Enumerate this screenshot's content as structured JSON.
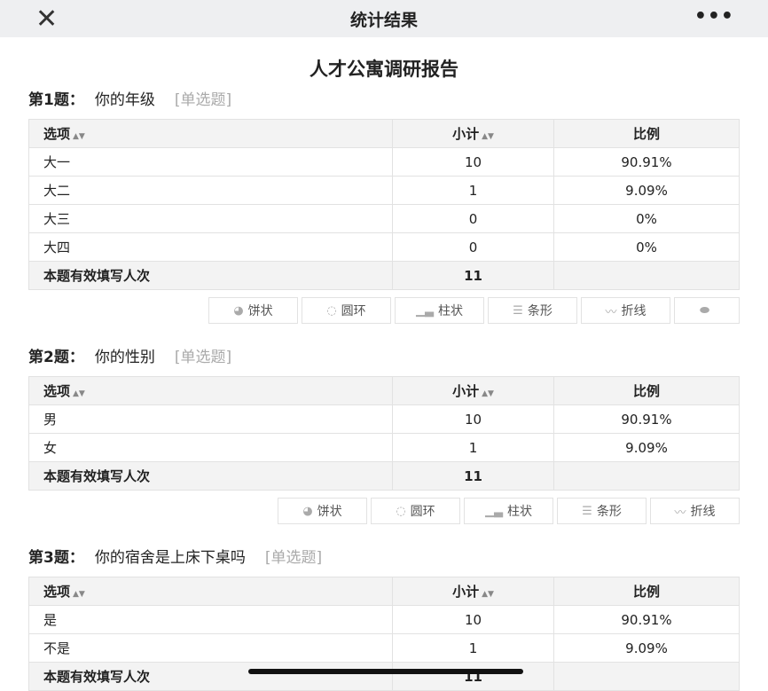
{
  "topbar": {
    "title": "统计结果",
    "close_icon": "close-icon",
    "more_icon": "more-icon"
  },
  "report_title": "人才公寓调研报告",
  "headers": {
    "option": "选项",
    "count": "小计",
    "ratio": "比例"
  },
  "total_label": "本题有效填写人次",
  "chart_buttons": [
    {
      "icon": "pie-icon",
      "glyph": "◕",
      "label": "饼状"
    },
    {
      "icon": "ring-icon",
      "glyph": "◌",
      "label": "圆环"
    },
    {
      "icon": "bar-icon",
      "glyph": "▁▃",
      "label": "柱状"
    },
    {
      "icon": "hbar-icon",
      "glyph": "☰",
      "label": "条形"
    },
    {
      "icon": "line-icon",
      "glyph": "〰",
      "label": "折线"
    },
    {
      "icon": "hide-chart-icon",
      "glyph": "⬬",
      "label": ""
    }
  ],
  "questions": [
    {
      "num": "第1题：",
      "text": "你的年级",
      "type": "[单选题]",
      "rows": [
        [
          "大一",
          "10",
          "90.91%"
        ],
        [
          "大二",
          "1",
          "9.09%"
        ],
        [
          "大三",
          "0",
          "0%"
        ],
        [
          "大四",
          "0",
          "0%"
        ]
      ],
      "total": "11",
      "buttons": 6
    },
    {
      "num": "第2题：",
      "text": "你的性别",
      "type": "[单选题]",
      "rows": [
        [
          "男",
          "10",
          "90.91%"
        ],
        [
          "女",
          "1",
          "9.09%"
        ]
      ],
      "total": "11",
      "buttons": 5
    },
    {
      "num": "第3题：",
      "text": "你的宿舍是上床下桌吗",
      "type": "[单选题]",
      "rows": [
        [
          "是",
          "10",
          "90.91%"
        ],
        [
          "不是",
          "1",
          "9.09%"
        ]
      ],
      "total": "11",
      "buttons": 0
    }
  ]
}
